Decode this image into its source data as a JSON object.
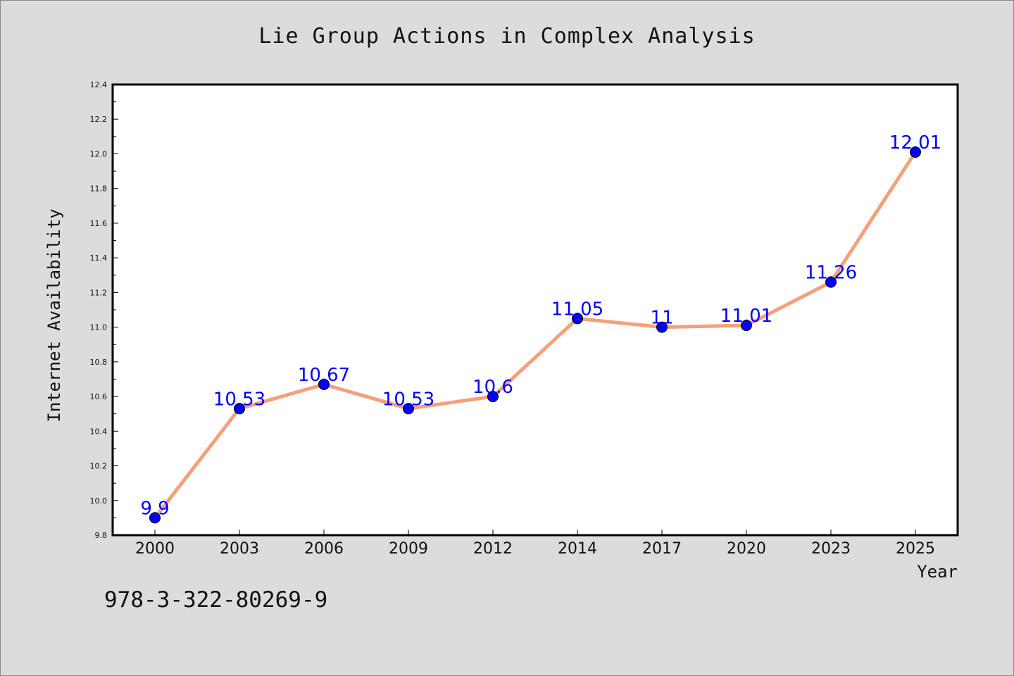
{
  "figure": {
    "background": "#dcdcdc",
    "isbn": "978-3-322-80269-9"
  },
  "chart_data": {
    "type": "line",
    "title": "Lie Group Actions in Complex Analysis",
    "xlabel": "Year",
    "ylabel": "Internet Availability",
    "categories": [
      "2000",
      "2003",
      "2006",
      "2009",
      "2012",
      "2014",
      "2017",
      "2020",
      "2023",
      "2025"
    ],
    "point_labels": [
      "9.9",
      "10.53",
      "10.67",
      "10.53",
      "10.6",
      "11.05",
      "11",
      "11.01",
      "11.26",
      "12.01"
    ],
    "values": [
      9.9,
      10.53,
      10.67,
      10.53,
      10.6,
      11.05,
      11.0,
      11.01,
      11.26,
      12.01
    ],
    "ylim": [
      9.8,
      12.4
    ],
    "yticks": [
      "9.8",
      "10.0",
      "10.2",
      "10.4",
      "10.6",
      "10.8",
      "11.0",
      "11.2",
      "11.4",
      "11.6",
      "11.8",
      "12.0",
      "12.2",
      "12.4"
    ],
    "grid": false,
    "line_color": "#f4a07a",
    "marker_color": "#0000ff",
    "label_color": "#0000ff",
    "plot_background": "#ffffff"
  }
}
